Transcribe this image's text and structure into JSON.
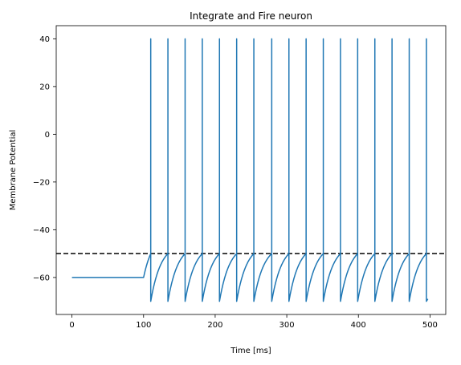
{
  "chart_data": {
    "type": "line",
    "title": "Integrate and Fire neuron",
    "xlabel": "Time [ms]",
    "ylabel": "Membrane Potential",
    "xlim": [
      -22,
      522
    ],
    "ylim": [
      -75.5,
      45.5
    ],
    "xticks": [
      0,
      100,
      200,
      300,
      400,
      500
    ],
    "yticks": [
      -60,
      -40,
      -20,
      0,
      20,
      40
    ],
    "grid": false,
    "series": [
      {
        "color": "#1f77b4",
        "rest_potential": -60,
        "reset_potential": -70,
        "spike_peak": 40,
        "threshold_crossing": -50,
        "input_onset_ms": 100,
        "end_ms": 497,
        "end_value": -69,
        "spike_times_ms": [
          110,
          134,
          158,
          182,
          206,
          230,
          254,
          279,
          303,
          327,
          351,
          375,
          399,
          423,
          447,
          471,
          495
        ]
      }
    ],
    "reference_lines": [
      {
        "type": "horizontal",
        "y": -50,
        "style": "dashed",
        "color": "#000000"
      }
    ]
  }
}
